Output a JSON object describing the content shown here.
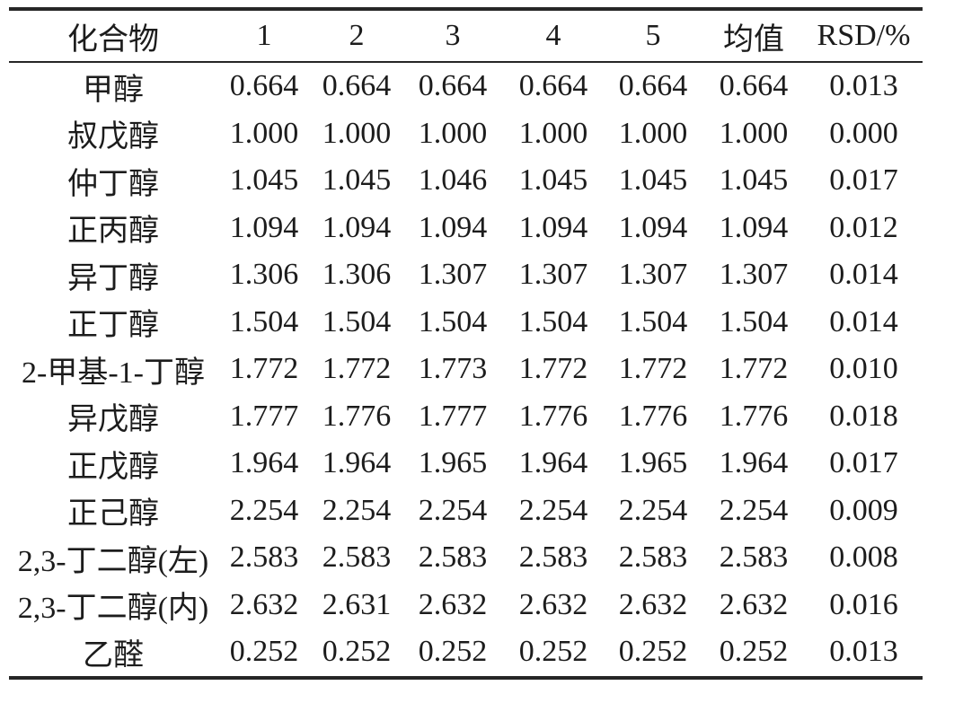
{
  "table": {
    "columns": [
      "化合物",
      "1",
      "2",
      "3",
      "4",
      "5",
      "均值",
      "RSD/%"
    ],
    "rows": [
      {
        "compound": "甲醇",
        "values": [
          "0.664",
          "0.664",
          "0.664",
          "0.664",
          "0.664",
          "0.664",
          "0.013"
        ]
      },
      {
        "compound": "叔戊醇",
        "values": [
          "1.000",
          "1.000",
          "1.000",
          "1.000",
          "1.000",
          "1.000",
          "0.000"
        ]
      },
      {
        "compound": "仲丁醇",
        "values": [
          "1.045",
          "1.045",
          "1.046",
          "1.045",
          "1.045",
          "1.045",
          "0.017"
        ]
      },
      {
        "compound": "正丙醇",
        "values": [
          "1.094",
          "1.094",
          "1.094",
          "1.094",
          "1.094",
          "1.094",
          "0.012"
        ]
      },
      {
        "compound": "异丁醇",
        "values": [
          "1.306",
          "1.306",
          "1.307",
          "1.307",
          "1.307",
          "1.307",
          "0.014"
        ]
      },
      {
        "compound": "正丁醇",
        "values": [
          "1.504",
          "1.504",
          "1.504",
          "1.504",
          "1.504",
          "1.504",
          "0.014"
        ]
      },
      {
        "compound": "2-甲基-1-丁醇",
        "values": [
          "1.772",
          "1.772",
          "1.773",
          "1.772",
          "1.772",
          "1.772",
          "0.010"
        ]
      },
      {
        "compound": "异戊醇",
        "values": [
          "1.777",
          "1.776",
          "1.777",
          "1.776",
          "1.776",
          "1.776",
          "0.018"
        ]
      },
      {
        "compound": "正戊醇",
        "values": [
          "1.964",
          "1.964",
          "1.965",
          "1.964",
          "1.965",
          "1.964",
          "0.017"
        ]
      },
      {
        "compound": "正己醇",
        "values": [
          "2.254",
          "2.254",
          "2.254",
          "2.254",
          "2.254",
          "2.254",
          "0.009"
        ]
      },
      {
        "compound": "2,3-丁二醇(左)",
        "values": [
          "2.583",
          "2.583",
          "2.583",
          "2.583",
          "2.583",
          "2.583",
          "0.008"
        ]
      },
      {
        "compound": "2,3-丁二醇(内)",
        "values": [
          "2.632",
          "2.631",
          "2.632",
          "2.632",
          "2.632",
          "2.632",
          "0.016"
        ]
      },
      {
        "compound": "乙醛",
        "values": [
          "0.252",
          "0.252",
          "0.252",
          "0.252",
          "0.252",
          "0.252",
          "0.013"
        ]
      }
    ]
  }
}
